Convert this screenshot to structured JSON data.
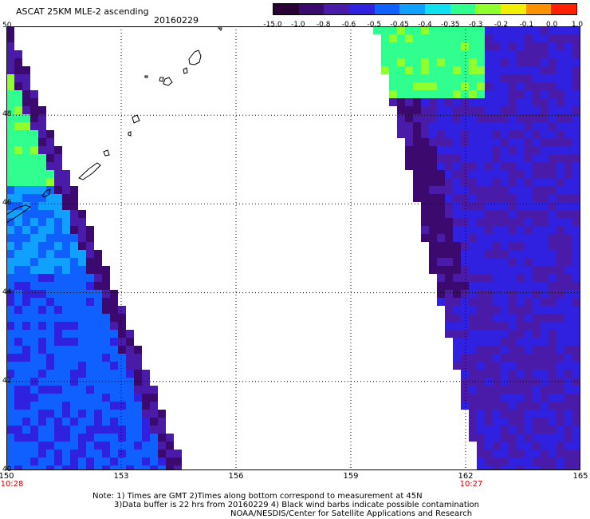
{
  "header": {
    "title": "ASCAT 25KM MLE-2 ascending",
    "date": "20160229"
  },
  "color_scale": {
    "labels": [
      "-15.0",
      "-1.0",
      "-0.8",
      "-0.6",
      "-0.5",
      "-0.45",
      "-0.4",
      "-0.35",
      "-0.3",
      "-0.2",
      "-0.1",
      "0.0",
      "1.0"
    ],
    "colors": [
      "#2a0035",
      "#3c0a6e",
      "#4a1aa8",
      "#3020e0",
      "#1060ff",
      "#10a0ff",
      "#10e0f0",
      "#30ff90",
      "#90ff30",
      "#f0f000",
      "#ff9000",
      "#ff2000"
    ]
  },
  "map": {
    "lat_labels": [
      "50",
      "48",
      "46",
      "44",
      "42",
      "40"
    ],
    "lon_labels": [
      "150",
      "153",
      "156",
      "159",
      "162",
      "165"
    ],
    "lat_range": [
      40,
      50
    ],
    "lon_range": [
      150,
      165
    ],
    "grid": true,
    "swath_times": [
      {
        "time": "10:28",
        "lon": 150
      },
      {
        "time": "10:27",
        "lon": 162
      }
    ]
  },
  "notes": {
    "line1": "Note: 1) Times are GMT 2)Times along bottom correspond to measurement at 45N",
    "line2": "3)Data buffer is 22 hrs from 20160229 4) Black wind barbs indicate possible contamination",
    "line3": "NOAA/NESDIS/Center for Satellite Applications and Research"
  }
}
